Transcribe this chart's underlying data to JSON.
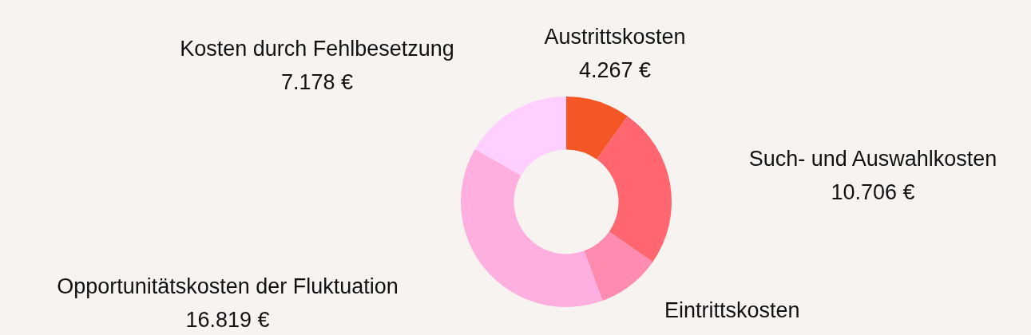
{
  "chart_data": {
    "type": "donut",
    "categories": [
      "Austrittskosten",
      "Such- und Auswahlkosten",
      "Eintrittskosten",
      "Opportunitätskosten der Fluktuation",
      "Kosten durch Fehlbesetzung"
    ],
    "values": [
      4267,
      10706,
      4200,
      16819,
      7178
    ],
    "value_labels": [
      "4.267 €",
      "10.706 €",
      null,
      "16.819 €",
      "7.178 €"
    ],
    "colors": [
      "#f55625",
      "#ff6670",
      "#ff8bb0",
      "#ffaee0",
      "#ffd0ff"
    ]
  }
}
